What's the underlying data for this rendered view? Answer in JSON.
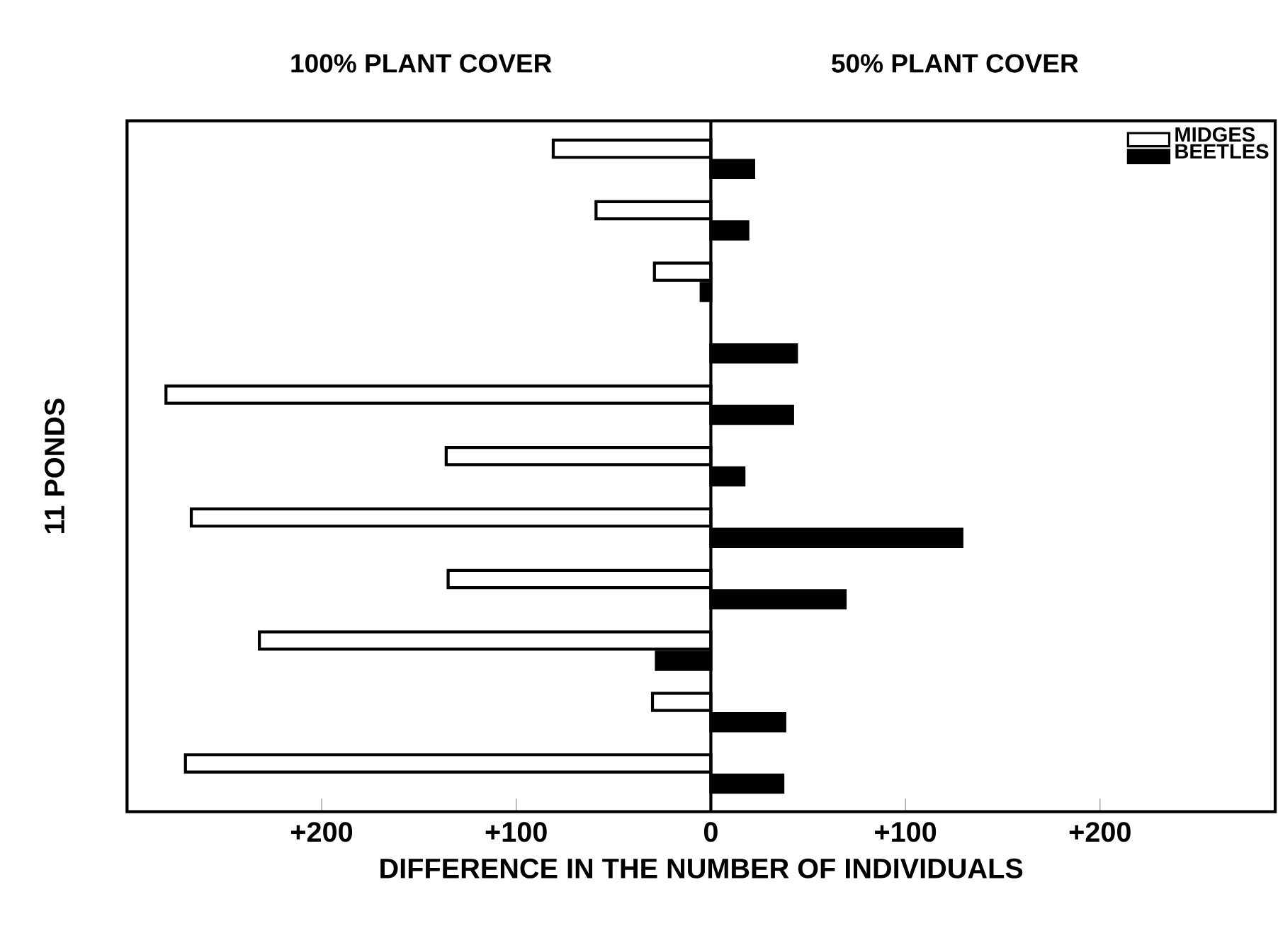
{
  "chart_data": {
    "type": "bar",
    "orientation": "horizontal",
    "annotations": [
      "100% PLANT COVER",
      "50% PLANT COVER"
    ],
    "xlabel": "DIFFERENCE IN THE NUMBER OF INDIVIDUALS",
    "ylabel": "11 PONDS",
    "categories": [
      null,
      null,
      null,
      null,
      null,
      null,
      null,
      null,
      null,
      null,
      null
    ],
    "series": [
      {
        "name": "MIDGES",
        "color": "#ffffff",
        "values": [
          -81,
          -59,
          -29,
          null,
          -280,
          -136,
          -267,
          -135,
          -232,
          -30,
          -270
        ]
      },
      {
        "name": "BEETLES",
        "color": "#000000",
        "values": [
          22,
          19,
          -5,
          44,
          42,
          17,
          129,
          69,
          -28,
          38,
          37
        ]
      }
    ],
    "xlim": [
      -300,
      290
    ],
    "xticks": [
      {
        "value": -200,
        "label": "+200"
      },
      {
        "value": -100,
        "label": "+100"
      },
      0,
      {
        "value": 100,
        "label": "+100"
      },
      {
        "value": 200,
        "label": "+200"
      }
    ],
    "ref_lines": [
      {
        "axis": "x",
        "value": 0,
        "color": "#000000"
      }
    ],
    "tick_labels": "x",
    "grid": false,
    "legend": "top right"
  }
}
